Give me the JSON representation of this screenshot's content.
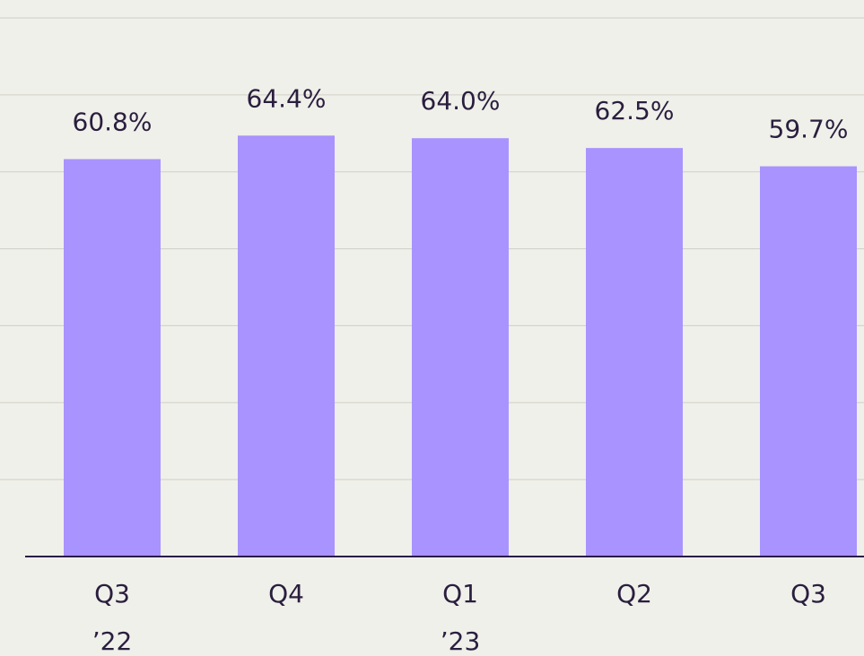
{
  "chart_data": {
    "type": "bar",
    "categories": [
      [
        "Q3",
        "’22"
      ],
      [
        "Q4"
      ],
      [
        "Q1",
        "’23"
      ],
      [
        "Q2"
      ],
      [
        "Q3"
      ]
    ],
    "values": [
      60.8,
      64.4,
      64.0,
      62.5,
      59.7
    ],
    "value_labels": [
      "60.8%",
      "64.4%",
      "64.0%",
      "62.5%",
      "59.7%"
    ],
    "color": "#a993fe",
    "ylim": [
      0,
      82.4
    ],
    "grid": true
  }
}
